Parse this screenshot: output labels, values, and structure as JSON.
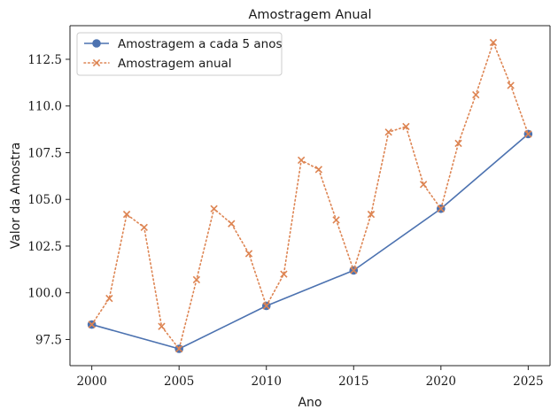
{
  "chart_data": {
    "type": "line",
    "title": "Amostragem Anual",
    "xlabel": "Ano",
    "ylabel": "Valor da Amostra",
    "xlim": [
      1998.75,
      2026.25
    ],
    "ylim": [
      96.1,
      114.3
    ],
    "x_ticks": [
      2000,
      2005,
      2010,
      2015,
      2020,
      2025
    ],
    "x_tick_labels": [
      "2000",
      "2005",
      "2010",
      "2015",
      "2020",
      "2025"
    ],
    "y_ticks": [
      97.5,
      100.0,
      102.5,
      105.0,
      107.5,
      110.0,
      112.5
    ],
    "y_tick_labels": [
      "97.5",
      "100.0",
      "102.5",
      "105.0",
      "107.5",
      "110.0",
      "112.5"
    ],
    "grid": false,
    "legend_position": "top-left",
    "series": [
      {
        "name": "Amostragem a cada 5 anos",
        "color": "#4c72b0",
        "line_style": "solid",
        "marker": "circle",
        "x": [
          2000,
          2005,
          2010,
          2015,
          2020,
          2025
        ],
        "y": [
          98.3,
          97.0,
          99.3,
          101.2,
          104.5,
          108.5
        ]
      },
      {
        "name": "Amostragem anual",
        "color": "#dd8452",
        "line_style": "dotted",
        "marker": "x",
        "x": [
          2000,
          2001,
          2002,
          2003,
          2004,
          2005,
          2006,
          2007,
          2008,
          2009,
          2010,
          2011,
          2012,
          2013,
          2014,
          2015,
          2016,
          2017,
          2018,
          2019,
          2020,
          2021,
          2022,
          2023,
          2024,
          2025
        ],
        "y": [
          98.3,
          99.7,
          104.2,
          103.5,
          98.2,
          97.0,
          100.7,
          104.5,
          103.7,
          102.1,
          99.3,
          101.0,
          107.1,
          106.6,
          103.9,
          101.2,
          104.2,
          108.6,
          108.9,
          105.8,
          104.5,
          108.0,
          110.6,
          113.4,
          111.1,
          108.5
        ]
      }
    ]
  }
}
